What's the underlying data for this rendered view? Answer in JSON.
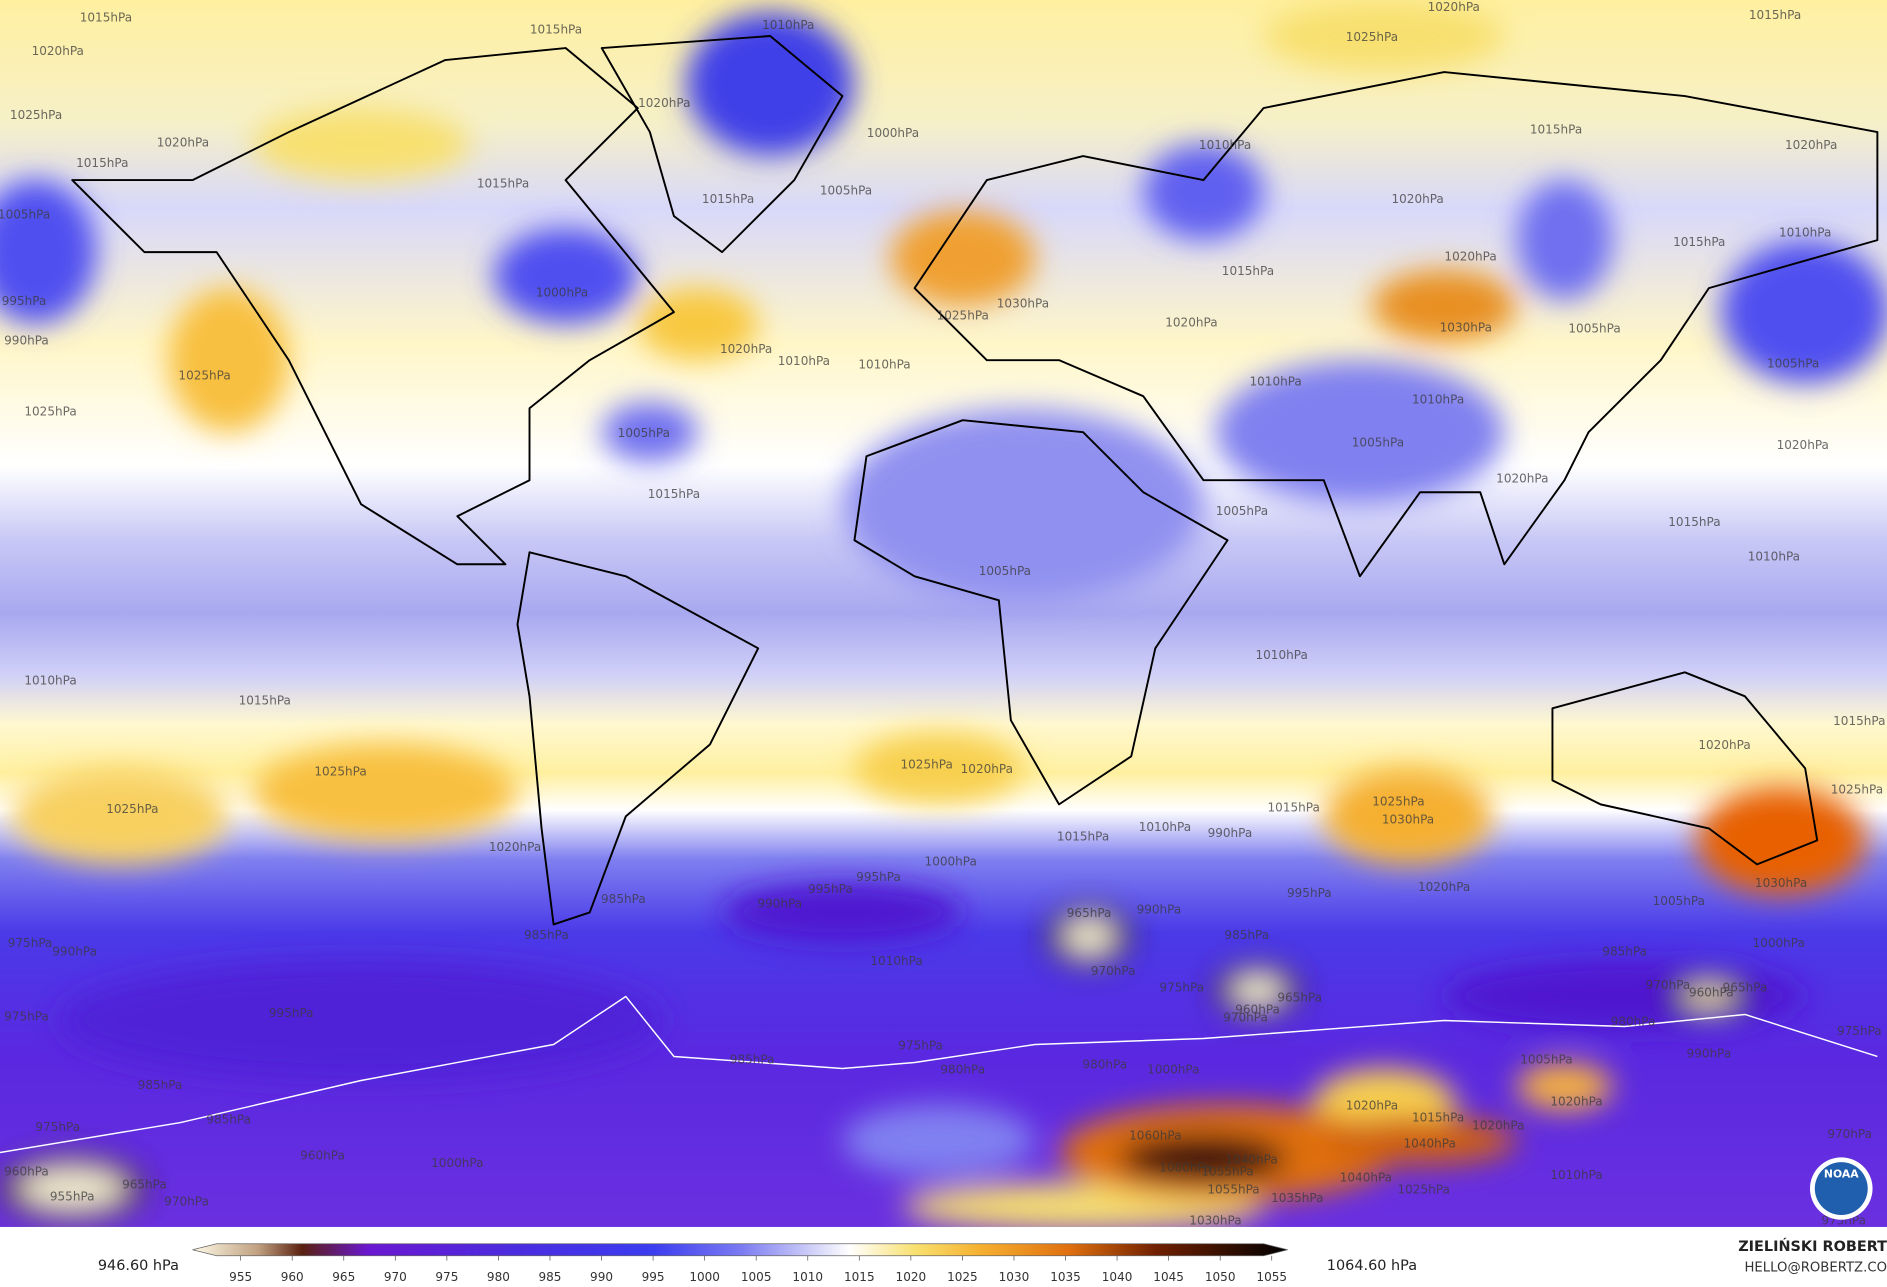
{
  "map": {
    "isobar_labels": [
      "1015hPa",
      "1020hPa",
      "1025hPa",
      "1020hPa",
      "1015hPa",
      "1005hPa",
      "995hPa",
      "990hPa",
      "1025hPa",
      "1025hPa",
      "1015hPa",
      "1010hPa",
      "1020hPa",
      "1000hPa",
      "1015hPa",
      "1005hPa",
      "1015hPa",
      "1000hPa",
      "1020hPa",
      "1010hPa",
      "1010hPa",
      "1005hPa",
      "1015hPa",
      "1020hPa",
      "1015hPa",
      "1025hPa",
      "1010hPa",
      "1015hPa",
      "1020hPa",
      "1020hPa",
      "1020hPa",
      "1015hPa",
      "1010hPa",
      "1015hPa",
      "1025hPa",
      "1030hPa",
      "1030hPa",
      "1020hPa",
      "1005hPa",
      "1005hPa",
      "1010hPa",
      "1010hPa",
      "1005hPa",
      "1020hPa",
      "1020hPa",
      "1005hPa",
      "1015hPa",
      "1010hPa",
      "1005hPa",
      "1010hPa",
      "1010hPa",
      "1015hPa",
      "1025hPa",
      "1025hPa",
      "1020hPa",
      "1025hPa",
      "1020hPa",
      "1015hPa",
      "1010hPa",
      "1015hPa",
      "1025hPa",
      "1030hPa",
      "1020hPa",
      "1030hPa",
      "1020hPa",
      "1025hPa",
      "1015hPa",
      "990hPa",
      "1000hPa",
      "995hPa",
      "995hPa",
      "990hPa",
      "985hPa",
      "985hPa",
      "965hPa",
      "990hPa",
      "995hPa",
      "1005hPa",
      "975hPa",
      "990hPa",
      "1010hPa",
      "970hPa",
      "985hPa",
      "985hPa",
      "1000hPa",
      "975hPa",
      "960hPa",
      "970hPa",
      "965hPa",
      "970hPa",
      "960hPa",
      "965hPa",
      "980hPa",
      "975hPa",
      "995hPa",
      "975hPa",
      "985hPa",
      "980hPa",
      "980hPa",
      "1000hPa",
      "1005hPa",
      "990hPa",
      "975hPa",
      "985hPa",
      "985hPa",
      "975hPa",
      "960hPa",
      "1000hPa",
      "1020hPa",
      "1020hPa",
      "1015hPa",
      "1020hPa",
      "1040hPa",
      "1060hPa",
      "1040hPa",
      "1055hPa",
      "1060hPa",
      "1055hPa",
      "1040hPa",
      "1035hPa",
      "1025hPa",
      "1030hPa",
      "1010hPa",
      "970hPa",
      "975hPa",
      "960hPa",
      "955hPa",
      "965hPa",
      "970hPa"
    ],
    "colorbar": {
      "range": [
        {
          "value": 946.6,
          "label": "946.60 hPa"
        },
        {
          "value": 1064.6,
          "label": "1064.60 hPa"
        }
      ],
      "ticks": [
        955,
        960,
        965,
        970,
        975,
        980,
        985,
        990,
        995,
        1000,
        1005,
        1010,
        1015,
        1020,
        1025,
        1030,
        1035,
        1040,
        1045,
        1050,
        1055
      ]
    },
    "author": "ZIELIŃSKI ROBERT",
    "contact": "HELLO@ROBERTZ.CO",
    "logo_text": "NOAA"
  }
}
